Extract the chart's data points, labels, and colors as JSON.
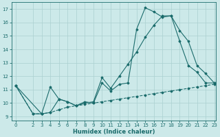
{
  "xlabel": "Humidex (Indice chaleur)",
  "xlim": [
    0,
    23
  ],
  "ylim": [
    9,
    17
  ],
  "yticks": [
    9,
    10,
    11,
    12,
    13,
    14,
    15,
    16,
    17
  ],
  "xticks": [
    0,
    2,
    3,
    4,
    5,
    6,
    7,
    8,
    9,
    10,
    11,
    12,
    13,
    14,
    15,
    16,
    17,
    18,
    19,
    20,
    21,
    22,
    23
  ],
  "bg_color": "#cce9e9",
  "line_color": "#1a6b6b",
  "grid_color": "#aad0d0",
  "line1_x": [
    0,
    2,
    3,
    4,
    5,
    6,
    7,
    8,
    9,
    10,
    11,
    12,
    13,
    14,
    15,
    16,
    17,
    18,
    19,
    20,
    21,
    22,
    23
  ],
  "line1_y": [
    11.3,
    9.2,
    9.2,
    11.2,
    10.3,
    10.1,
    9.8,
    10.1,
    10.0,
    11.5,
    10.9,
    11.4,
    11.5,
    15.5,
    17.1,
    16.8,
    16.4,
    16.5,
    14.6,
    12.8,
    12.3,
    11.5,
    11.5
  ],
  "line2_x": [
    0,
    3,
    4,
    5,
    6,
    7,
    8,
    9,
    10,
    11,
    12,
    13,
    14,
    15,
    16,
    17,
    18,
    19,
    20,
    21,
    22,
    23
  ],
  "line2_y": [
    11.3,
    9.2,
    9.3,
    10.3,
    10.1,
    9.8,
    10.0,
    10.1,
    11.9,
    11.1,
    12.0,
    12.9,
    13.8,
    14.9,
    15.8,
    16.5,
    16.5,
    15.4,
    14.6,
    12.8,
    12.2,
    11.5
  ],
  "line3_x": [
    0,
    2,
    3,
    4,
    5,
    6,
    7,
    8,
    9,
    10,
    11,
    12,
    13,
    14,
    15,
    16,
    17,
    18,
    19,
    20,
    21,
    22,
    23
  ],
  "line3_y": [
    11.3,
    9.2,
    9.2,
    9.3,
    9.5,
    9.7,
    9.8,
    9.9,
    10.0,
    10.1,
    10.2,
    10.3,
    10.4,
    10.5,
    10.6,
    10.7,
    10.8,
    10.9,
    11.0,
    11.1,
    11.2,
    11.3,
    11.4
  ]
}
